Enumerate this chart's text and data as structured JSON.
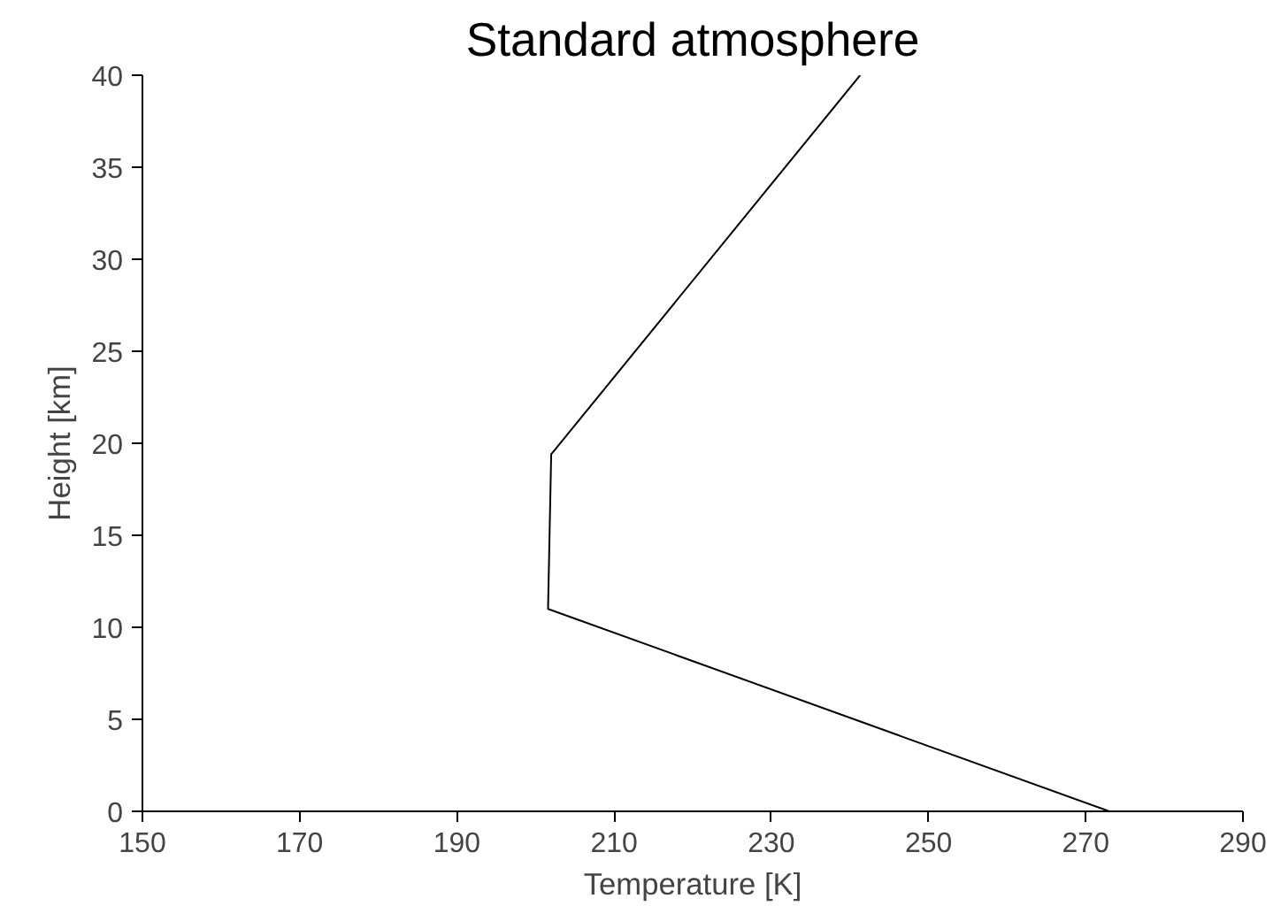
{
  "chart_data": {
    "type": "line",
    "title": "Standard atmosphere",
    "xlabel": "Temperature [K]",
    "ylabel": "Height [km]",
    "x": [
      273,
      201.6,
      202,
      241.3
    ],
    "series": [
      {
        "color": "#000000",
        "values": [
          0,
          11,
          19.4,
          40
        ]
      }
    ],
    "xlim": [
      150,
      290
    ],
    "xticks": [
      150,
      170,
      190,
      210,
      230,
      250,
      270,
      290
    ],
    "ylim": [
      0,
      40
    ],
    "yticks": [
      0,
      5,
      10,
      15,
      20,
      25,
      30,
      35,
      40
    ],
    "marker": "none",
    "line_style": "solid"
  }
}
